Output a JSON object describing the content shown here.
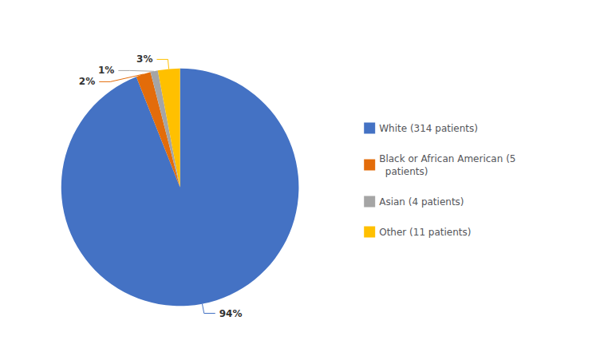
{
  "chart_data": {
    "type": "pie",
    "categories": [
      "White (314 patients)",
      "Black or African American (5\n  patients)",
      "Asian (4 patients)",
      "Other (11 patients)"
    ],
    "values": [
      94,
      2,
      1,
      3
    ],
    "value_labels": [
      "94%",
      "2%",
      "1%",
      "3%"
    ],
    "colors": [
      "#4472C4",
      "#E36C0A",
      "#A5A5A5",
      "#FFC000"
    ],
    "data_labels": true,
    "legend": "right"
  }
}
